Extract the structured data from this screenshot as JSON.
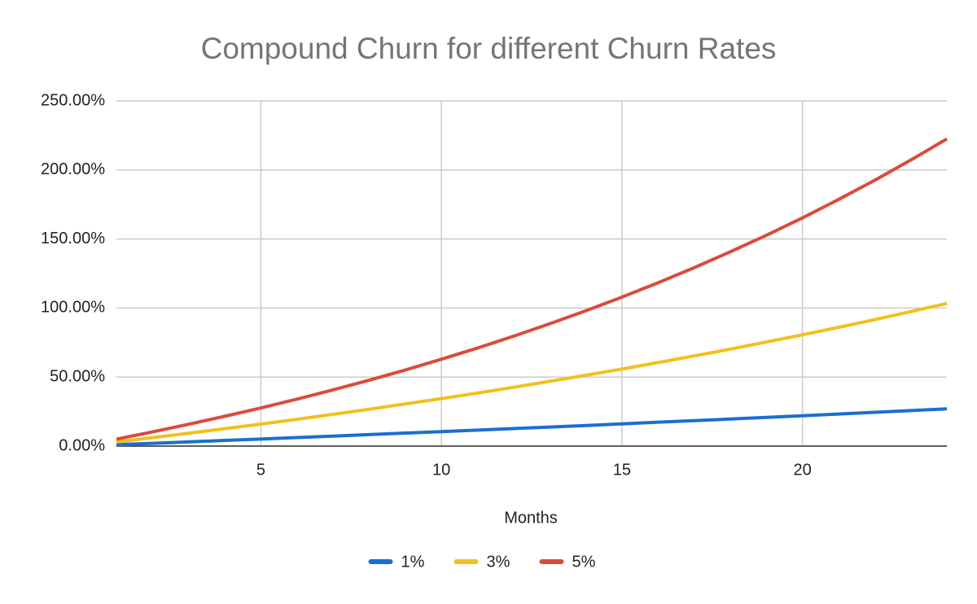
{
  "chart_data": {
    "type": "line",
    "title": "Compound Churn for different Churn Rates",
    "x_label": "Months",
    "x": [
      1,
      2,
      3,
      4,
      5,
      6,
      7,
      8,
      9,
      10,
      11,
      12,
      13,
      14,
      15,
      16,
      17,
      18,
      19,
      20,
      21,
      22,
      23,
      24
    ],
    "series": [
      {
        "name": "1%",
        "color": "#1a6fd0",
        "values": [
          1.0,
          2.0,
          3.0,
          4.1,
          5.1,
          6.2,
          7.2,
          8.3,
          9.4,
          10.5,
          11.6,
          12.7,
          13.8,
          14.9,
          16.1,
          17.3,
          18.4,
          19.6,
          20.8,
          22.0,
          23.2,
          24.5,
          25.7,
          27.0
        ]
      },
      {
        "name": "3%",
        "color": "#f1c01c",
        "values": [
          3.0,
          6.1,
          9.3,
          12.6,
          15.9,
          19.4,
          23.0,
          26.7,
          30.5,
          34.4,
          38.4,
          42.6,
          46.9,
          51.3,
          55.8,
          60.5,
          65.3,
          70.2,
          75.4,
          80.6,
          86.0,
          91.6,
          97.4,
          103.3
        ]
      },
      {
        "name": "5%",
        "color": "#db4b3d",
        "values": [
          5.0,
          10.3,
          15.8,
          21.6,
          27.6,
          34.0,
          40.7,
          47.7,
          55.1,
          62.9,
          71.0,
          79.6,
          88.6,
          98.0,
          107.9,
          118.3,
          129.2,
          140.7,
          152.7,
          165.3,
          178.6,
          192.5,
          207.2,
          222.5
        ]
      }
    ],
    "xlim": [
      1,
      24
    ],
    "xticks": [
      5,
      10,
      15,
      20
    ],
    "ylim": [
      0,
      250
    ],
    "yticks": [
      {
        "value": 0,
        "label": "0.00%"
      },
      {
        "value": 50,
        "label": "50.00%"
      },
      {
        "value": 100,
        "label": "100.00%"
      },
      {
        "value": 150,
        "label": "150.00%"
      },
      {
        "value": 200,
        "label": "200.00%"
      },
      {
        "value": 250,
        "label": "250.00%"
      }
    ],
    "grid": true,
    "legend": "bottom"
  }
}
